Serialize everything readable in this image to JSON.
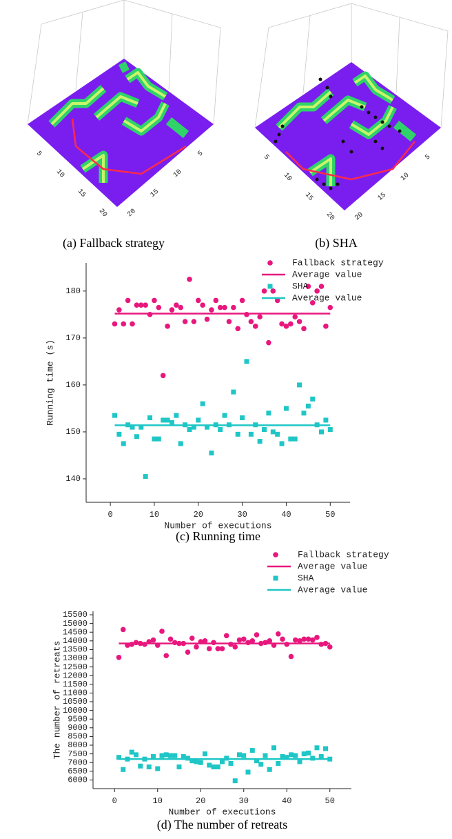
{
  "chart_data": [
    {
      "type": "surface3d",
      "caption": "(a) Fallback strategy",
      "xlim": [
        0,
        21
      ],
      "ylim": [
        0,
        21
      ],
      "xticks": [
        5,
        10,
        15,
        20
      ],
      "yticks": [
        5,
        10,
        15,
        20
      ]
    },
    {
      "type": "surface3d",
      "caption": "(b) SHA",
      "xlim": [
        0,
        21
      ],
      "ylim": [
        0,
        21
      ],
      "xticks": [
        5,
        10,
        15,
        20
      ],
      "yticks": [
        5,
        10,
        15,
        20
      ]
    },
    {
      "type": "scatter",
      "caption": "(c) Running time",
      "xlabel": "Number of executions",
      "ylabel": "Running time (s)",
      "xlim": [
        -5.5,
        54.5
      ],
      "ylim": [
        135,
        186
      ],
      "xticks": [
        0,
        10,
        20,
        30,
        40,
        50
      ],
      "yticks": [
        140,
        150,
        160,
        170,
        180
      ],
      "series": [
        {
          "name": "Fallback strategy",
          "color": "#e8177d",
          "marker": "circle",
          "x": [
            1,
            2,
            3,
            4,
            5,
            6,
            7,
            8,
            9,
            10,
            11,
            12,
            13,
            14,
            15,
            16,
            17,
            18,
            19,
            20,
            21,
            22,
            23,
            24,
            25,
            26,
            27,
            28,
            29,
            30,
            31,
            32,
            33,
            34,
            35,
            36,
            37,
            38,
            39,
            40,
            41,
            42,
            43,
            44,
            45,
            46,
            47,
            48,
            49,
            50
          ],
          "values": [
            173,
            176,
            173,
            178,
            173,
            177,
            177,
            177,
            175,
            178,
            176.5,
            162,
            172.5,
            176,
            177,
            176.5,
            173.5,
            182.5,
            173.5,
            178,
            177,
            174,
            176,
            178,
            176.5,
            176.5,
            173.5,
            176.5,
            172,
            178,
            175,
            173.5,
            172.5,
            174.5,
            180,
            169,
            180,
            178,
            173,
            172.5,
            173,
            174.5,
            173.5,
            172,
            181,
            177.5,
            180,
            181,
            172.5,
            176.5
          ]
        },
        {
          "name": "Average value",
          "color": "#e8177d",
          "marker": "line",
          "x": [
            1,
            50
          ],
          "values": [
            175.2,
            175.2
          ]
        },
        {
          "name": "SHA",
          "color": "#1fc6c6",
          "marker": "square",
          "x": [
            1,
            2,
            3,
            4,
            5,
            6,
            7,
            8,
            9,
            10,
            11,
            12,
            13,
            14,
            15,
            16,
            17,
            18,
            19,
            20,
            21,
            22,
            23,
            24,
            25,
            26,
            27,
            28,
            29,
            30,
            31,
            32,
            33,
            34,
            35,
            36,
            37,
            38,
            39,
            40,
            41,
            42,
            43,
            44,
            45,
            46,
            47,
            48,
            49,
            50
          ],
          "values": [
            153.5,
            149.5,
            147.5,
            151.5,
            151,
            149,
            151,
            140.5,
            153,
            148.5,
            148.5,
            152.5,
            152.5,
            152,
            153.5,
            147.5,
            151.5,
            150.5,
            151,
            152.5,
            156,
            151,
            145.5,
            151.5,
            150.5,
            153.5,
            151.5,
            158.5,
            149.5,
            153,
            165,
            149.5,
            151.5,
            148,
            150.5,
            154,
            150,
            149.5,
            147.5,
            155,
            148.5,
            148.5,
            160,
            154,
            155.5,
            157,
            151.5,
            150,
            152.5,
            150.5
          ]
        },
        {
          "name": "Average value",
          "color": "#1fc6c6",
          "marker": "line",
          "x": [
            1,
            50
          ],
          "values": [
            151.4,
            151.4
          ]
        }
      ]
    },
    {
      "type": "scatter",
      "caption": "(d) The number of retreats",
      "xlabel": "Number of executions",
      "ylabel": "The number of retreats",
      "xlim": [
        -5,
        55
      ],
      "ylim": [
        5500,
        15700
      ],
      "xticks": [
        0,
        10,
        20,
        30,
        40,
        50
      ],
      "yticks": [
        6000,
        6500,
        7000,
        7500,
        8000,
        8500,
        9000,
        9500,
        10000,
        10500,
        11000,
        11500,
        12000,
        12500,
        13000,
        13500,
        14000,
        14500,
        15000,
        15500
      ],
      "series": [
        {
          "name": "Fallback strategy",
          "color": "#e8177d",
          "marker": "circle",
          "x": [
            1,
            2,
            3,
            4,
            5,
            6,
            7,
            8,
            9,
            10,
            11,
            12,
            13,
            14,
            15,
            16,
            17,
            18,
            19,
            20,
            21,
            22,
            23,
            24,
            25,
            26,
            27,
            28,
            29,
            30,
            31,
            32,
            33,
            34,
            35,
            36,
            37,
            38,
            39,
            40,
            41,
            42,
            43,
            44,
            45,
            46,
            47,
            48,
            49,
            50
          ],
          "values": [
            13050,
            14650,
            13750,
            13800,
            13900,
            13850,
            13800,
            13950,
            14050,
            13750,
            14550,
            13150,
            14100,
            13900,
            13850,
            13850,
            13350,
            14150,
            13650,
            13950,
            14000,
            13550,
            13900,
            13550,
            13550,
            14300,
            13800,
            13650,
            14050,
            14100,
            13900,
            14000,
            14350,
            13850,
            13900,
            14000,
            13750,
            14400,
            14100,
            13800,
            13100,
            14050,
            14000,
            14100,
            14100,
            14050,
            14200,
            13800,
            13850,
            13650
          ]
        },
        {
          "name": "Average value",
          "color": "#e8177d",
          "marker": "line",
          "x": [
            1,
            50
          ],
          "values": [
            13850,
            13850
          ]
        },
        {
          "name": "SHA",
          "color": "#1fc6c6",
          "marker": "square",
          "x": [
            1,
            2,
            3,
            4,
            5,
            6,
            7,
            8,
            9,
            10,
            11,
            12,
            13,
            14,
            15,
            16,
            17,
            18,
            19,
            20,
            21,
            22,
            23,
            24,
            25,
            26,
            27,
            28,
            29,
            30,
            31,
            32,
            33,
            34,
            35,
            36,
            37,
            38,
            39,
            40,
            41,
            42,
            43,
            44,
            45,
            46,
            47,
            48,
            49,
            50
          ],
          "values": [
            7300,
            6600,
            7200,
            7600,
            7450,
            6800,
            7200,
            6750,
            7350,
            6650,
            7400,
            7450,
            7400,
            7400,
            6750,
            7350,
            7250,
            7100,
            7050,
            7000,
            7500,
            6850,
            6750,
            6750,
            7050,
            7250,
            6950,
            5950,
            7450,
            7400,
            6450,
            7700,
            7100,
            6900,
            7400,
            6600,
            7850,
            6950,
            7350,
            7300,
            7450,
            7400,
            7050,
            7500,
            7550,
            7250,
            7850,
            7350,
            7800,
            7200
          ]
        },
        {
          "name": "Average value",
          "color": "#1fc6c6",
          "marker": "line",
          "x": [
            1,
            50
          ],
          "values": [
            7200,
            7200
          ]
        }
      ]
    }
  ]
}
